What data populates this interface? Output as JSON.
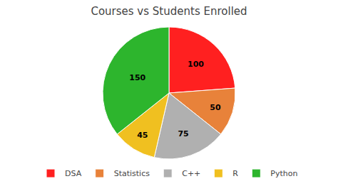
{
  "chart_data": {
    "type": "pie",
    "title": "Courses vs Students Enrolled",
    "categories": [
      "DSA",
      "Statistics",
      "C++",
      "R",
      "Python"
    ],
    "values": [
      100,
      50,
      75,
      45,
      150
    ],
    "colors": [
      "#ff2020",
      "#e8823a",
      "#b0b0b0",
      "#f0c020",
      "#2db52d"
    ],
    "data_labels": true,
    "legend": "bottom"
  }
}
